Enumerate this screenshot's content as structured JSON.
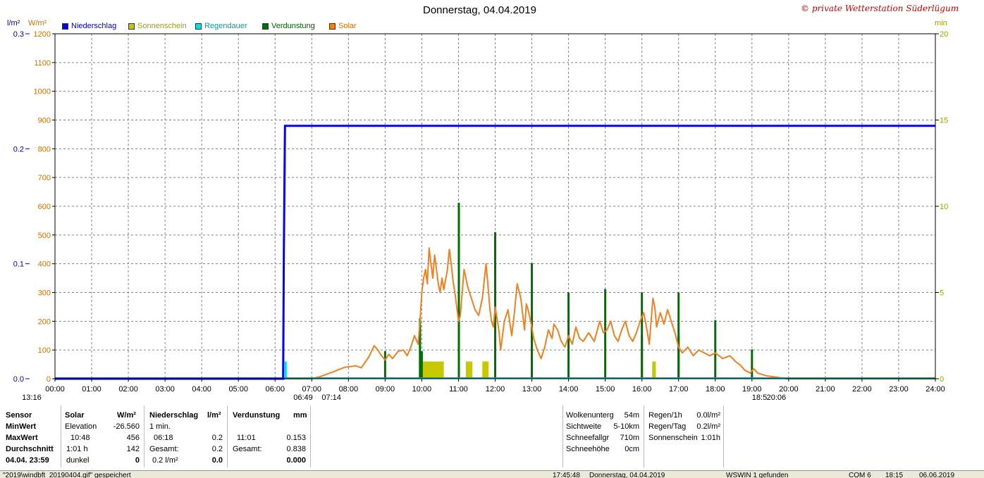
{
  "header": {
    "title": "Donnerstag, 04.04.2019",
    "copyright": "© private Wetterstation Süderlügum",
    "unit_rain": "l/m²",
    "unit_solar": "W/m²",
    "unit_minutes": "min"
  },
  "legend": [
    {
      "label": "Niederschlag",
      "color": "#0000ff"
    },
    {
      "label": "Sonnenschein",
      "color": "#c8c800"
    },
    {
      "label": "Regendauer",
      "color": "#00e0e0"
    },
    {
      "label": "Verdunstung",
      "color": "#007000"
    },
    {
      "label": "Solar",
      "color": "#ff8000"
    }
  ],
  "colors": {
    "rain": "#0000ff",
    "sunshine": "#c8c800",
    "raindur": "#00e0e0",
    "evap": "#007000",
    "solar": "#f08020",
    "grid": "#808080",
    "solar_axis": "#d07000",
    "min_axis": "#a0a000"
  },
  "chart_data": {
    "type": "line",
    "title": "Donnerstag, 04.04.2019",
    "x_ticks": [
      "00:00",
      "01:00",
      "02:00",
      "03:00",
      "04:00",
      "05:00",
      "06:00",
      "07:00",
      "08:00",
      "09:00",
      "10:00",
      "11:00",
      "12:00",
      "13:00",
      "14:00",
      "15:00",
      "16:00",
      "17:00",
      "18:00",
      "19:00",
      "20:00",
      "21:00",
      "22:00",
      "23:00",
      "24:00"
    ],
    "x_range_hours": [
      0,
      24
    ],
    "y_left_rain": {
      "unit": "l/m²",
      "range": [
        0,
        0.3
      ],
      "ticks": [
        "0.0",
        "0.1",
        "0.2",
        "0.3"
      ]
    },
    "y_left_solar": {
      "unit": "W/m²",
      "range": [
        0,
        1200
      ],
      "ticks": [
        "0",
        "100",
        "200",
        "300",
        "400",
        "500",
        "600",
        "700",
        "800",
        "900",
        "1000",
        "1100",
        "1200"
      ]
    },
    "y_right_minutes": {
      "unit": "min",
      "range": [
        0,
        20
      ],
      "ticks": [
        "0",
        "5",
        "10",
        "15",
        "20"
      ]
    },
    "grid": true,
    "legend_position": "top-left",
    "series": [
      {
        "name": "Niederschlag",
        "kind": "cumulative",
        "points": [
          [
            0,
            0
          ],
          [
            6.22,
            0
          ],
          [
            6.24,
            0.111
          ],
          [
            6.27,
            0.22
          ],
          [
            24,
            0.22
          ]
        ]
      },
      {
        "name": "Regendauer",
        "kind": "bars_minutes",
        "bars": [
          [
            6.28,
            1
          ]
        ]
      },
      {
        "name": "Sonnenschein",
        "kind": "bars_minutes",
        "bars": [
          [
            10.0,
            10.6,
            1
          ],
          [
            11.2,
            11.38,
            1
          ],
          [
            11.65,
            11.82,
            1
          ],
          [
            16.28,
            16.38,
            1
          ]
        ]
      },
      {
        "name": "Verdunstung",
        "kind": "bars_minutes",
        "bars": [
          [
            9.0,
            1.6
          ],
          [
            9.95,
            3.5
          ],
          [
            10.0,
            1.6
          ],
          [
            11.01,
            10.2
          ],
          [
            11.01,
            5.0
          ],
          [
            12.0,
            8.5
          ],
          [
            12.0,
            4.3
          ],
          [
            13.0,
            6.7
          ],
          [
            13.0,
            3.3
          ],
          [
            14.0,
            5.0
          ],
          [
            15.0,
            5.2
          ],
          [
            16.0,
            5.0
          ],
          [
            16.0,
            2.5
          ],
          [
            17.0,
            5.0
          ],
          [
            17.0,
            2.5
          ],
          [
            18.0,
            3.4
          ],
          [
            19.0,
            1.7
          ]
        ]
      },
      {
        "name": "Solar",
        "kind": "line",
        "points": [
          [
            0,
            0
          ],
          [
            7.0,
            0
          ],
          [
            7.25,
            8
          ],
          [
            7.6,
            25
          ],
          [
            7.9,
            40
          ],
          [
            8.2,
            45
          ],
          [
            8.35,
            38
          ],
          [
            8.55,
            75
          ],
          [
            8.7,
            115
          ],
          [
            8.8,
            100
          ],
          [
            8.9,
            80
          ],
          [
            9.0,
            65
          ],
          [
            9.1,
            85
          ],
          [
            9.2,
            70
          ],
          [
            9.35,
            95
          ],
          [
            9.5,
            100
          ],
          [
            9.6,
            80
          ],
          [
            9.7,
            110
          ],
          [
            9.8,
            150
          ],
          [
            9.9,
            120
          ],
          [
            9.95,
            200
          ],
          [
            10.0,
            300
          ],
          [
            10.05,
            350
          ],
          [
            10.1,
            380
          ],
          [
            10.15,
            330
          ],
          [
            10.2,
            455
          ],
          [
            10.25,
            400
          ],
          [
            10.3,
            350
          ],
          [
            10.35,
            430
          ],
          [
            10.4,
            380
          ],
          [
            10.45,
            330
          ],
          [
            10.5,
            300
          ],
          [
            10.55,
            350
          ],
          [
            10.6,
            310
          ],
          [
            10.7,
            380
          ],
          [
            10.75,
            450
          ],
          [
            10.8,
            400
          ],
          [
            10.85,
            340
          ],
          [
            10.9,
            300
          ],
          [
            10.95,
            250
          ],
          [
            11.0,
            200
          ],
          [
            11.05,
            220
          ],
          [
            11.15,
            380
          ],
          [
            11.25,
            320
          ],
          [
            11.35,
            280
          ],
          [
            11.45,
            240
          ],
          [
            11.55,
            220
          ],
          [
            11.65,
            280
          ],
          [
            11.75,
            400
          ],
          [
            11.8,
            330
          ],
          [
            11.85,
            250
          ],
          [
            11.9,
            200
          ],
          [
            11.95,
            180
          ],
          [
            12.0,
            250
          ],
          [
            12.05,
            210
          ],
          [
            12.1,
            170
          ],
          [
            12.15,
            100
          ],
          [
            12.25,
            200
          ],
          [
            12.35,
            240
          ],
          [
            12.45,
            150
          ],
          [
            12.5,
            200
          ],
          [
            12.6,
            330
          ],
          [
            12.7,
            280
          ],
          [
            12.8,
            170
          ],
          [
            12.85,
            260
          ],
          [
            12.9,
            240
          ],
          [
            13.0,
            180
          ],
          [
            13.05,
            140
          ],
          [
            13.15,
            100
          ],
          [
            13.25,
            70
          ],
          [
            13.35,
            110
          ],
          [
            13.45,
            170
          ],
          [
            13.55,
            140
          ],
          [
            13.6,
            190
          ],
          [
            13.7,
            170
          ],
          [
            13.8,
            130
          ],
          [
            13.9,
            110
          ],
          [
            14.0,
            150
          ],
          [
            14.1,
            120
          ],
          [
            14.2,
            180
          ],
          [
            14.3,
            140
          ],
          [
            14.4,
            130
          ],
          [
            14.55,
            160
          ],
          [
            14.7,
            130
          ],
          [
            14.85,
            200
          ],
          [
            14.95,
            160
          ],
          [
            15.05,
            170
          ],
          [
            15.15,
            200
          ],
          [
            15.25,
            150
          ],
          [
            15.35,
            130
          ],
          [
            15.45,
            170
          ],
          [
            15.55,
            200
          ],
          [
            15.65,
            150
          ],
          [
            15.75,
            130
          ],
          [
            15.85,
            160
          ],
          [
            15.95,
            200
          ],
          [
            16.05,
            230
          ],
          [
            16.15,
            160
          ],
          [
            16.2,
            120
          ],
          [
            16.25,
            200
          ],
          [
            16.3,
            280
          ],
          [
            16.35,
            250
          ],
          [
            16.4,
            180
          ],
          [
            16.5,
            230
          ],
          [
            16.6,
            190
          ],
          [
            16.7,
            240
          ],
          [
            16.8,
            200
          ],
          [
            16.9,
            160
          ],
          [
            17.0,
            110
          ],
          [
            17.1,
            90
          ],
          [
            17.25,
            110
          ],
          [
            17.4,
            80
          ],
          [
            17.55,
            100
          ],
          [
            17.7,
            90
          ],
          [
            17.85,
            80
          ],
          [
            18.0,
            90
          ],
          [
            18.2,
            70
          ],
          [
            18.4,
            80
          ],
          [
            18.55,
            60
          ],
          [
            18.7,
            45
          ],
          [
            18.8,
            30
          ],
          [
            18.95,
            20
          ],
          [
            19.05,
            35
          ],
          [
            19.15,
            20
          ],
          [
            19.4,
            10
          ],
          [
            19.7,
            5
          ],
          [
            19.95,
            0
          ],
          [
            24,
            0
          ]
        ]
      }
    ],
    "below_axis_labels": [
      {
        "text": "13:16",
        "hour": -0.9
      },
      {
        "text": "06:49",
        "hour": 6.5
      },
      {
        "text": "07:14",
        "hour": 7.27
      },
      {
        "text": "18:5",
        "hour": 19.0
      },
      {
        "text": "20:06",
        "hour": 19.4
      }
    ]
  },
  "stats": {
    "sensor_col": {
      "header": "Sensor",
      "rows": [
        "MinWert",
        "MaxWert",
        "Durchschnitt",
        "04.04.  23:59"
      ]
    },
    "solar_col": {
      "header": "Solar",
      "unit": "W/m²",
      "rows": [
        {
          "left": "Elevation",
          "right": "-26.560"
        },
        {
          "left": "10:48",
          "right": "456"
        },
        {
          "left": "1:01 h",
          "right": "142"
        },
        {
          "left": "dunkel",
          "right": "0"
        }
      ]
    },
    "rain_col": {
      "header": "Niederschlag",
      "unit": "l/m²",
      "rows": [
        {
          "left": "1 min.",
          "right": ""
        },
        {
          "left": "06:18",
          "right": "0.2"
        },
        {
          "left": "Gesamt:",
          "right": "0.2"
        },
        {
          "left": "0.2 l/m²",
          "right": "0.0"
        }
      ]
    },
    "evap_col": {
      "header": "Verdunstung",
      "unit": "mm",
      "rows": [
        {
          "left": "",
          "right": ""
        },
        {
          "left": "11:01",
          "right": "0.153"
        },
        {
          "left": "Gesamt:",
          "right": "0.838"
        },
        {
          "left": "",
          "right": "0.000"
        }
      ]
    },
    "cloud_col": {
      "rows": [
        {
          "label": "Wolkenunterg",
          "value": "54m"
        },
        {
          "label": "Sichtweite",
          "value": "5-10km"
        },
        {
          "label": "Schneefallgr",
          "value": "710m"
        },
        {
          "label": "Schneehöhe",
          "value": "0cm"
        }
      ]
    },
    "rainsum_col": {
      "rows": [
        {
          "label": "Regen/1h",
          "value": "0.0l/m²"
        },
        {
          "label": "Regen/Tag",
          "value": "0.2l/m²"
        },
        {
          "label": "Sonnenschein",
          "value": "1:01h"
        }
      ]
    }
  },
  "statusbar": {
    "file": "\"2019\\windbft_20190404.gif\"  gespeichert",
    "time1": "17:45:48",
    "date_label": "Donnerstag, 04.04.2019",
    "device": "WSWIN 1 gefunden",
    "port": "COM 6",
    "time2": "18:15",
    "date2": "06.06.2019"
  }
}
